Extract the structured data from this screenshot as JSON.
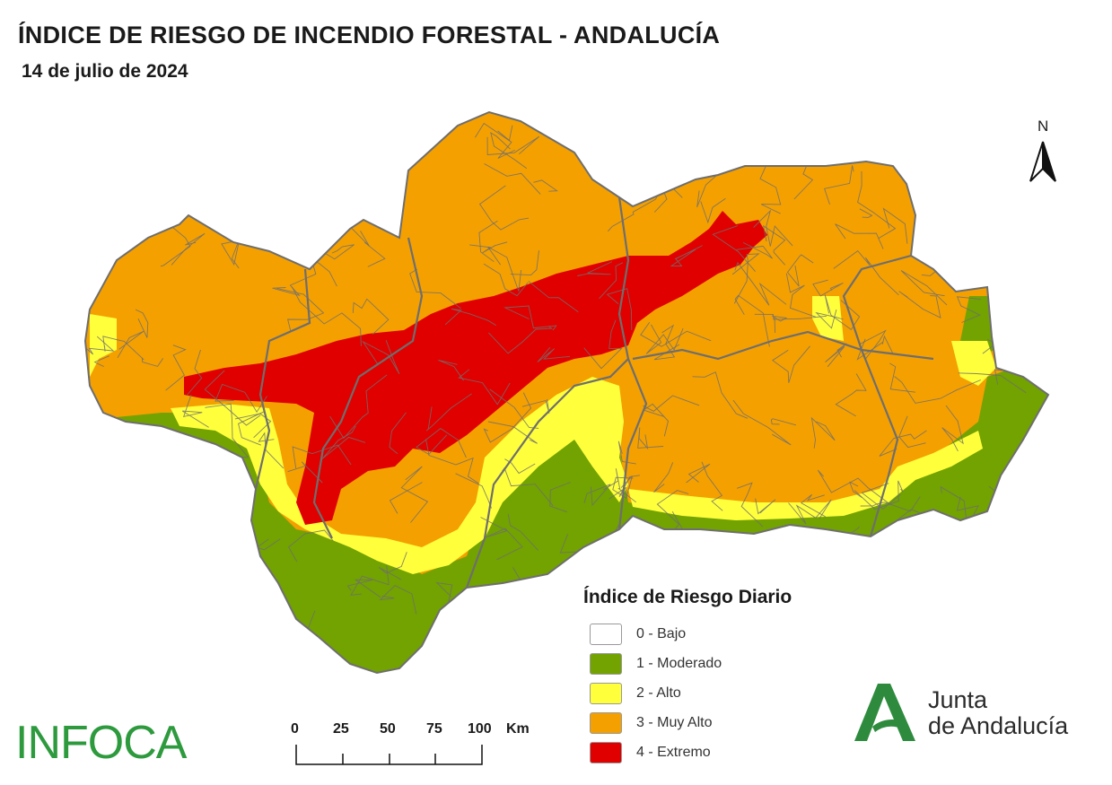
{
  "header": {
    "title": "ÍNDICE DE RIESGO DE INCENDIO FORESTAL - ANDALUCÍA",
    "date": "14 de julio de 2024"
  },
  "north_arrow": {
    "label": "N"
  },
  "legend": {
    "title": "Índice de Riesgo Diario",
    "items": [
      {
        "label": "0 - Bajo",
        "color": "#ffffff"
      },
      {
        "label": "1 - Moderado",
        "color": "#72a300"
      },
      {
        "label": "2 - Alto",
        "color": "#ffff3c"
      },
      {
        "label": "3 - Muy Alto",
        "color": "#f4a000"
      },
      {
        "label": "4 - Extremo",
        "color": "#e00000"
      }
    ]
  },
  "scale_bar": {
    "ticks": [
      "0",
      "25",
      "50",
      "75",
      "100"
    ],
    "unit": "Km"
  },
  "logos": {
    "infoca": "INFOCA",
    "junta_line1": "Junta",
    "junta_line2": "de Andalucía"
  },
  "colors": {
    "moderado": "#72a300",
    "alto": "#ffff3c",
    "muy_alto": "#f4a000",
    "extremo": "#e00000",
    "borders": "#6e6e6e",
    "junta_green": "#2e8b3e"
  }
}
